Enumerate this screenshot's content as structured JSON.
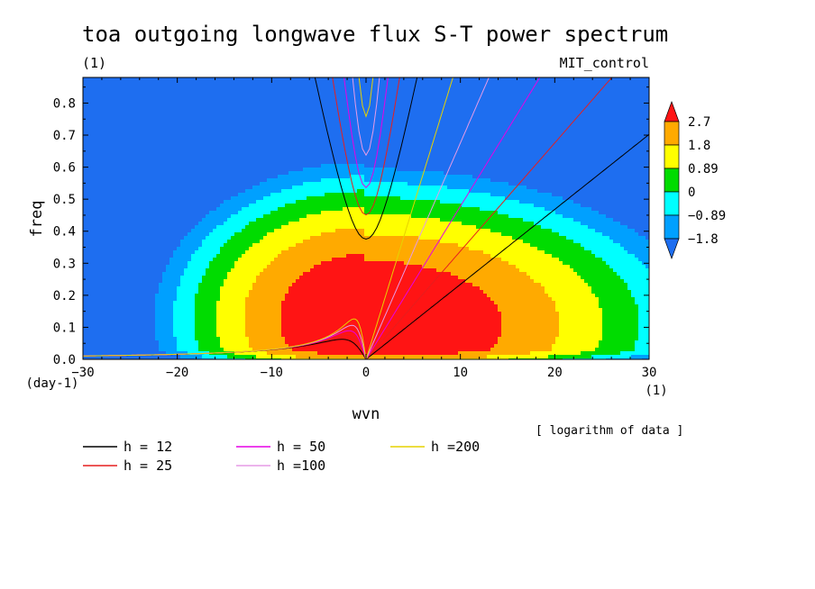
{
  "chart_data": {
    "type": "heatmap",
    "title": "toa outgoing longwave flux S-T power spectrum",
    "subtitle_left": "(1)",
    "subtitle_right": "MIT_control",
    "xlabel": "wvn",
    "ylabel": "freq",
    "x_unit": "(1)",
    "y_unit": "(day-1)",
    "xlim": [
      -30,
      30
    ],
    "ylim": [
      0,
      0.88
    ],
    "x_ticks": [
      -30,
      -20,
      -10,
      0,
      10,
      20,
      30
    ],
    "y_ticks": [
      0.0,
      0.1,
      0.2,
      0.3,
      0.4,
      0.5,
      0.6,
      0.7,
      0.8
    ],
    "x_tick_labels": [
      "−30",
      "−20",
      "−10",
      "0",
      "10",
      "20",
      "30"
    ],
    "y_tick_labels": [
      "0.0",
      "0.1",
      "0.2",
      "0.3",
      "0.4",
      "0.5",
      "0.6",
      "0.7",
      "0.8"
    ],
    "note": "[ logarithm of data ]",
    "colorbar": {
      "levels": [
        "2.7",
        "1.8",
        "0.89",
        "0",
        "−0.89",
        "−1.8"
      ],
      "colors": [
        "#1e6ef0",
        "#00a0ff",
        "#00ffff",
        "#00dc00",
        "#ffff00",
        "#ffaa00",
        "#ff1414"
      ]
    },
    "filled_contours": [
      {
        "level": "lt -1.8",
        "color": "#1e6ef0"
      },
      {
        "level": "-1.8",
        "color": "#00a0ff"
      },
      {
        "level": "-0.89",
        "color": "#00ffff"
      },
      {
        "level": "0",
        "color": "#00dc00"
      },
      {
        "level": "0.89",
        "color": "#ffff00"
      },
      {
        "level": "1.8",
        "color": "#ffaa00"
      },
      {
        "level": "2.7",
        "color": "#ff1414"
      }
    ],
    "dispersion_curves": [
      {
        "name": "h = 12",
        "h": 12,
        "color": "#000000"
      },
      {
        "name": "h = 25",
        "h": 25,
        "color": "#e61e1e"
      },
      {
        "name": "h = 50",
        "h": 50,
        "color": "#e600e6"
      },
      {
        "name": "h =100",
        "h": 100,
        "color": "#e69be6"
      },
      {
        "name": "h =200",
        "h": 200,
        "color": "#e6d200"
      }
    ]
  }
}
